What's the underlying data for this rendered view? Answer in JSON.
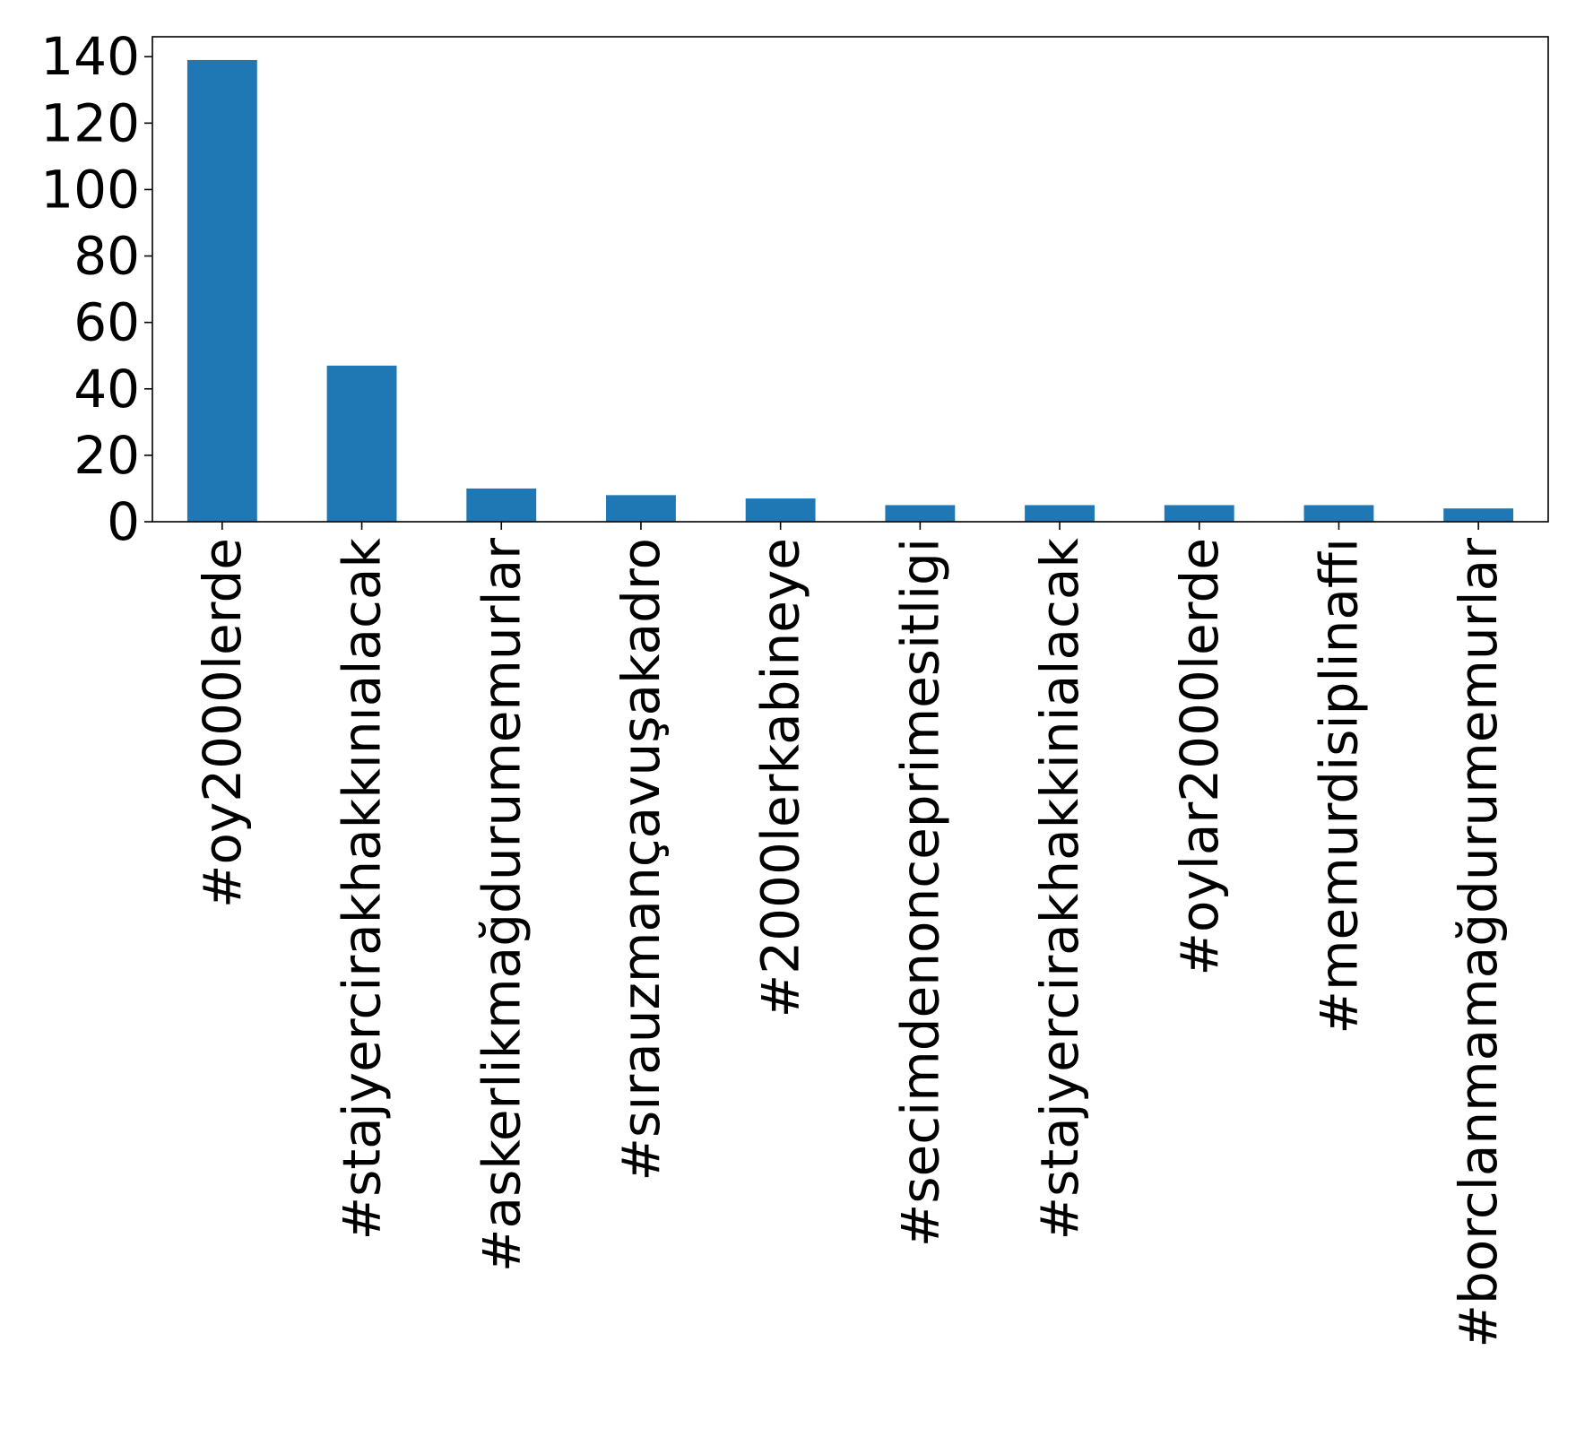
{
  "chart_data": {
    "type": "bar",
    "title": "",
    "xlabel": "",
    "ylabel": "",
    "categories": [
      "#oy2000lerde",
      "#stajyercirakhakkınıalacak",
      "#askerlikmağdurumemurlar",
      "#sırauzmançavuşakadro",
      "#2000lerkabineye",
      "#secimdenonceprimesitligi",
      "#stajyercirakhakkinialacak",
      "#oylar2000lerde",
      "#memurdisiplinaffı",
      "#borclanmamağdurumemurlar"
    ],
    "values": [
      139,
      47,
      10,
      8,
      7,
      5,
      5,
      5,
      5,
      4
    ],
    "ylim": [
      0,
      146
    ],
    "yticks": [
      0,
      20,
      40,
      60,
      80,
      100,
      120,
      140
    ],
    "bar_color": "#1f77b4",
    "grid": false,
    "legend": "none"
  }
}
